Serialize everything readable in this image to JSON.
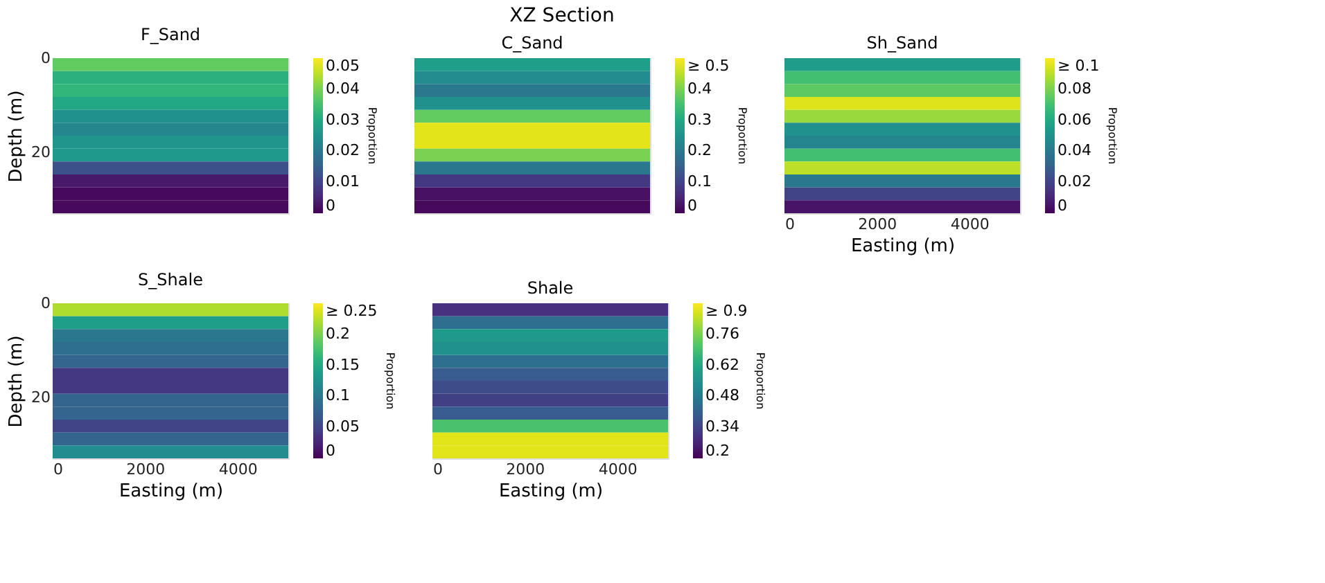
{
  "chart_data": [
    {
      "type": "heatmap",
      "title": "F_Sand",
      "annotations": [
        "XZ Section"
      ],
      "ylabel": "Depth (m)",
      "clabel": "Proportion",
      "tick_labels": "y",
      "xlim": [
        0,
        5100
      ],
      "xticks": [
        0,
        2000,
        4000
      ],
      "ylim": [
        33,
        0
      ],
      "yticks": [
        0,
        20
      ],
      "clim": [
        0,
        0.05
      ],
      "cticks": [
        0,
        0.01,
        0.02,
        0.03,
        0.04,
        0.05
      ],
      "cells": [
        [
          0.038,
          0.038,
          0.038,
          0.038
        ],
        [
          0.032,
          0.032,
          0.032,
          0.032
        ],
        [
          0.033,
          0.033,
          0.033,
          0.033
        ],
        [
          0.03,
          0.03,
          0.03,
          0.03
        ],
        [
          0.025,
          0.025,
          0.025,
          0.025
        ],
        [
          0.023,
          0.023,
          0.023,
          0.023
        ],
        [
          0.026,
          0.026,
          0.026,
          0.026
        ],
        [
          0.027,
          0.027,
          0.027,
          0.027
        ],
        [
          0.012,
          0.012,
          0.012,
          0.012
        ],
        [
          0.003,
          0.003,
          0.003,
          0.003
        ],
        [
          0.001,
          0.001,
          0.001,
          0.001
        ],
        [
          0.001,
          0.001,
          0.001,
          0.001
        ]
      ]
    },
    {
      "type": "heatmap",
      "title": "C_Sand",
      "clabel": "Proportion",
      "tick_labels": false,
      "categories": [
        null,
        null,
        null,
        null
      ],
      "y_categories": [
        null,
        null,
        null,
        null,
        null,
        null,
        null,
        null,
        null,
        null,
        null,
        null
      ],
      "clim": [
        0,
        0.5
      ],
      "cticks": [
        0,
        0.1,
        0.2,
        0.3,
        0.4,
        {
          "value": 0.5,
          "label": "≥ 0.5"
        }
      ],
      "cells": [
        [
          0.28,
          0.28,
          0.28,
          0.28
        ],
        [
          0.24,
          0.24,
          0.24,
          0.24
        ],
        [
          0.2,
          0.2,
          0.2,
          0.2
        ],
        [
          0.25,
          0.25,
          0.25,
          0.25
        ],
        [
          0.38,
          0.38,
          0.38,
          0.38
        ],
        [
          0.48,
          0.48,
          0.48,
          0.48
        ],
        [
          0.48,
          0.48,
          0.48,
          0.48
        ],
        [
          0.4,
          0.4,
          0.4,
          0.4
        ],
        [
          0.2,
          0.2,
          0.2,
          0.2
        ],
        [
          0.08,
          0.08,
          0.08,
          0.08
        ],
        [
          0.02,
          0.02,
          0.02,
          0.02
        ],
        [
          0.01,
          0.01,
          0.01,
          0.01
        ]
      ]
    },
    {
      "type": "heatmap",
      "title": "Sh_Sand",
      "xlabel": "Easting (m)",
      "clabel": "Proportion",
      "tick_labels": "x",
      "xlim": [
        0,
        5100
      ],
      "xticks": [
        0,
        2000,
        4000
      ],
      "ylim": [
        33,
        0
      ],
      "yticks": [
        0,
        20
      ],
      "clim": [
        0,
        0.1
      ],
      "cticks": [
        0,
        0.02,
        0.04,
        0.06,
        0.08,
        {
          "value": 0.1,
          "label": "≥ 0.1"
        }
      ],
      "cells": [
        [
          0.055,
          0.055,
          0.055,
          0.055
        ],
        [
          0.07,
          0.07,
          0.07,
          0.07
        ],
        [
          0.075,
          0.075,
          0.075,
          0.075
        ],
        [
          0.095,
          0.095,
          0.095,
          0.095
        ],
        [
          0.085,
          0.085,
          0.085,
          0.085
        ],
        [
          0.05,
          0.05,
          0.05,
          0.05
        ],
        [
          0.045,
          0.045,
          0.045,
          0.045
        ],
        [
          0.07,
          0.07,
          0.07,
          0.07
        ],
        [
          0.09,
          0.09,
          0.09,
          0.09
        ],
        [
          0.04,
          0.04,
          0.04,
          0.04
        ],
        [
          0.02,
          0.02,
          0.02,
          0.02
        ],
        [
          0.005,
          0.005,
          0.005,
          0.005
        ]
      ]
    },
    {
      "type": "heatmap",
      "title": "S_Shale",
      "xlabel": "Easting (m)",
      "ylabel": "Depth (m)",
      "clabel": "Proportion",
      "xlim": [
        0,
        5100
      ],
      "xticks": [
        0,
        2000,
        4000
      ],
      "ylim": [
        33,
        0
      ],
      "yticks": [
        0,
        20
      ],
      "clim": [
        0,
        0.25
      ],
      "cticks": [
        0,
        0.05,
        0.1,
        0.15,
        0.2,
        {
          "value": 0.25,
          "label": "≥ 0.25"
        }
      ],
      "cells": [
        [
          0.22,
          0.22,
          0.22,
          0.22
        ],
        [
          0.14,
          0.14,
          0.14,
          0.14
        ],
        [
          0.1,
          0.1,
          0.1,
          0.1
        ],
        [
          0.09,
          0.09,
          0.09,
          0.09
        ],
        [
          0.08,
          0.08,
          0.08,
          0.08
        ],
        [
          0.04,
          0.04,
          0.04,
          0.04
        ],
        [
          0.04,
          0.04,
          0.04,
          0.04
        ],
        [
          0.08,
          0.08,
          0.08,
          0.08
        ],
        [
          0.08,
          0.08,
          0.08,
          0.08
        ],
        [
          0.05,
          0.05,
          0.05,
          0.05
        ],
        [
          0.08,
          0.08,
          0.08,
          0.08
        ],
        [
          0.12,
          0.12,
          0.12,
          0.12
        ]
      ]
    },
    {
      "type": "heatmap",
      "title": "Shale",
      "xlabel": "Easting (m)",
      "clabel": "Proportion",
      "tick_labels": "x",
      "xlim": [
        0,
        5100
      ],
      "xticks": [
        0,
        2000,
        4000
      ],
      "ylim": [
        33,
        0
      ],
      "yticks": [
        0,
        20
      ],
      "clim": [
        0.2,
        0.9
      ],
      "cticks": [
        0.2,
        0.34,
        0.48,
        0.62,
        0.76,
        {
          "value": 0.9,
          "label": "≥ 0.9"
        }
      ],
      "cells": [
        [
          0.3,
          0.3,
          0.3,
          0.3
        ],
        [
          0.45,
          0.45,
          0.45,
          0.45
        ],
        [
          0.58,
          0.58,
          0.58,
          0.58
        ],
        [
          0.55,
          0.55,
          0.55,
          0.55
        ],
        [
          0.45,
          0.45,
          0.45,
          0.45
        ],
        [
          0.4,
          0.4,
          0.4,
          0.4
        ],
        [
          0.36,
          0.36,
          0.36,
          0.36
        ],
        [
          0.33,
          0.33,
          0.33,
          0.33
        ],
        [
          0.4,
          0.4,
          0.4,
          0.4
        ],
        [
          0.7,
          0.7,
          0.7,
          0.7
        ],
        [
          0.87,
          0.87,
          0.87,
          0.87
        ],
        [
          0.87,
          0.87,
          0.87,
          0.87
        ]
      ]
    }
  ]
}
